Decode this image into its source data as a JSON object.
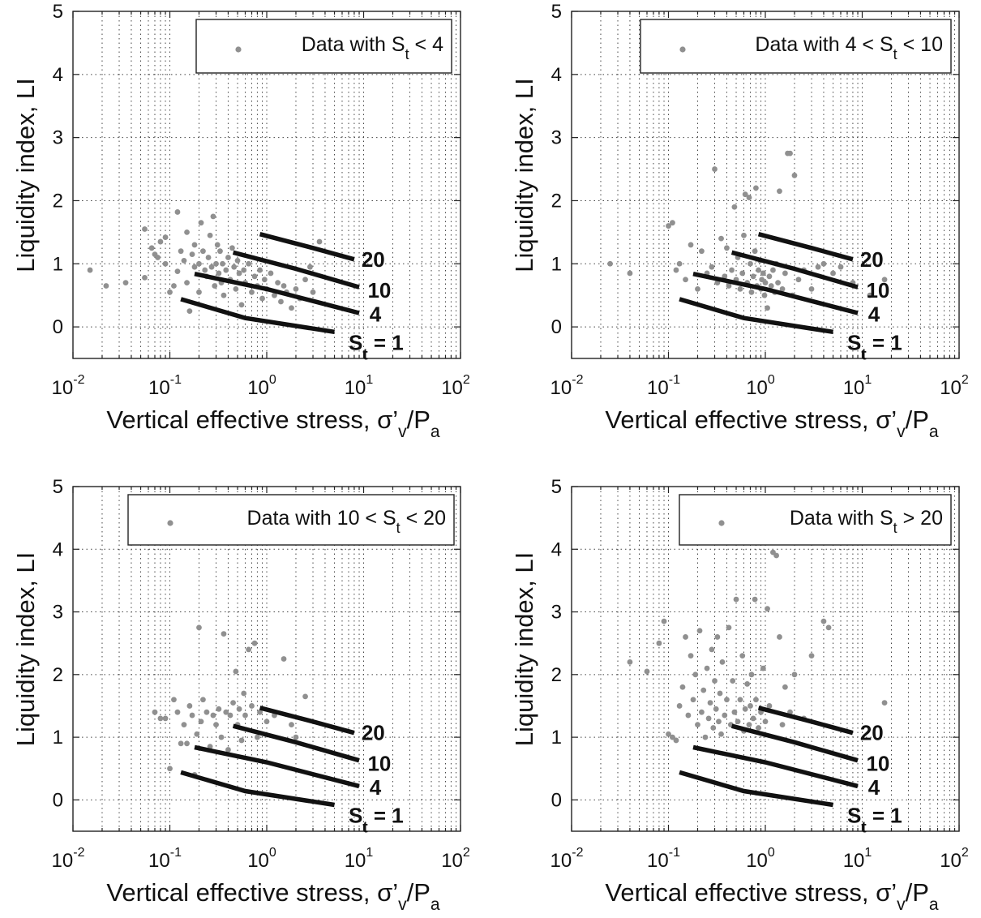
{
  "chart_data": [
    {
      "type": "scatter",
      "panel": "top-left",
      "legend": {
        "prefix": "Data with ",
        "var": "S",
        "sub": "t",
        "suffix": " < 4"
      },
      "xlabel": {
        "main": "Vertical effective stress, σ’",
        "sub1": "v",
        "mid": "/P",
        "sub2": "a"
      },
      "ylabel": "Liquidity index, LI",
      "xscale": "log",
      "xlim": [
        0.01,
        100
      ],
      "ylim": [
        -0.5,
        5
      ],
      "xticks": [
        {
          "base": "10",
          "exp": "-2"
        },
        {
          "base": "10",
          "exp": "-1"
        },
        {
          "base": "10",
          "exp": "0"
        },
        {
          "base": "10",
          "exp": "1"
        },
        {
          "base": "10",
          "exp": "2"
        }
      ],
      "yticks": [
        "0",
        "1",
        "2",
        "3",
        "4",
        "5"
      ],
      "points": [
        [
          0.015,
          0.9
        ],
        [
          0.022,
          0.65
        ],
        [
          0.035,
          0.7
        ],
        [
          0.055,
          1.55
        ],
        [
          0.055,
          0.78
        ],
        [
          0.065,
          1.25
        ],
        [
          0.07,
          1.15
        ],
        [
          0.075,
          1.1
        ],
        [
          0.08,
          1.35
        ],
        [
          0.09,
          1.42
        ],
        [
          0.09,
          1.0
        ],
        [
          0.1,
          0.55
        ],
        [
          0.11,
          0.65
        ],
        [
          0.12,
          0.88
        ],
        [
          0.12,
          1.82
        ],
        [
          0.13,
          1.2
        ],
        [
          0.14,
          1.05
        ],
        [
          0.15,
          0.7
        ],
        [
          0.15,
          1.5
        ],
        [
          0.16,
          0.25
        ],
        [
          0.17,
          1.15
        ],
        [
          0.18,
          0.95
        ],
        [
          0.18,
          1.3
        ],
        [
          0.2,
          1.0
        ],
        [
          0.2,
          0.55
        ],
        [
          0.21,
          1.65
        ],
        [
          0.22,
          1.2
        ],
        [
          0.23,
          0.9
        ],
        [
          0.24,
          0.8
        ],
        [
          0.25,
          1.1
        ],
        [
          0.26,
          1.45
        ],
        [
          0.27,
          0.95
        ],
        [
          0.28,
          1.75
        ],
        [
          0.29,
          0.65
        ],
        [
          0.3,
          1.0
        ],
        [
          0.31,
          1.3
        ],
        [
          0.32,
          0.85
        ],
        [
          0.33,
          1.2
        ],
        [
          0.34,
          0.7
        ],
        [
          0.35,
          1.0
        ],
        [
          0.36,
          0.5
        ],
        [
          0.38,
          0.9
        ],
        [
          0.4,
          1.1
        ],
        [
          0.42,
          0.75
        ],
        [
          0.44,
          1.25
        ],
        [
          0.46,
          0.95
        ],
        [
          0.48,
          0.6
        ],
        [
          0.5,
          1.05
        ],
        [
          0.52,
          0.85
        ],
        [
          0.55,
          0.35
        ],
        [
          0.58,
          0.9
        ],
        [
          0.6,
          0.7
        ],
        [
          0.65,
          1.0
        ],
        [
          0.7,
          0.55
        ],
        [
          0.75,
          0.8
        ],
        [
          0.8,
          0.65
        ],
        [
          0.85,
          0.9
        ],
        [
          0.9,
          0.45
        ],
        [
          0.95,
          0.75
        ],
        [
          1.0,
          0.6
        ],
        [
          1.1,
          0.85
        ],
        [
          1.2,
          0.5
        ],
        [
          1.3,
          0.7
        ],
        [
          1.4,
          0.4
        ],
        [
          1.5,
          0.65
        ],
        [
          1.6,
          0.55
        ],
        [
          1.8,
          0.3
        ],
        [
          2.0,
          0.6
        ],
        [
          2.2,
          0.45
        ],
        [
          2.5,
          0.75
        ],
        [
          2.8,
          0.95
        ],
        [
          3.0,
          0.55
        ],
        [
          3.5,
          1.35
        ]
      ]
    },
    {
      "type": "scatter",
      "panel": "top-right",
      "legend": {
        "prefix": "Data with 4 < ",
        "var": "S",
        "sub": "t",
        "suffix": " < 10"
      },
      "xlabel": {
        "main": "Vertical effective stress, σ’",
        "sub1": "v",
        "mid": "/P",
        "sub2": "a"
      },
      "ylabel": "Liquidity index, LI",
      "xscale": "log",
      "xlim": [
        0.01,
        100
      ],
      "ylim": [
        -0.5,
        5
      ],
      "xticks": [
        {
          "base": "10",
          "exp": "-2"
        },
        {
          "base": "10",
          "exp": "-1"
        },
        {
          "base": "10",
          "exp": "0"
        },
        {
          "base": "10",
          "exp": "1"
        },
        {
          "base": "10",
          "exp": "2"
        }
      ],
      "yticks": [
        "0",
        "1",
        "2",
        "3",
        "4",
        "5"
      ],
      "points": [
        [
          0.025,
          1.0
        ],
        [
          0.04,
          0.85
        ],
        [
          0.1,
          1.6
        ],
        [
          0.11,
          1.65
        ],
        [
          0.12,
          0.9
        ],
        [
          0.13,
          1.0
        ],
        [
          0.15,
          0.75
        ],
        [
          0.17,
          1.3
        ],
        [
          0.2,
          0.6
        ],
        [
          0.22,
          1.2
        ],
        [
          0.25,
          0.85
        ],
        [
          0.28,
          0.95
        ],
        [
          0.3,
          2.5
        ],
        [
          0.32,
          0.7
        ],
        [
          0.35,
          1.4
        ],
        [
          0.38,
          0.8
        ],
        [
          0.4,
          1.25
        ],
        [
          0.42,
          0.65
        ],
        [
          0.45,
          0.9
        ],
        [
          0.48,
          1.9
        ],
        [
          0.5,
          0.75
        ],
        [
          0.52,
          1.1
        ],
        [
          0.55,
          0.6
        ],
        [
          0.58,
          0.85
        ],
        [
          0.6,
          1.45
        ],
        [
          0.62,
          2.1
        ],
        [
          0.65,
          0.7
        ],
        [
          0.68,
          2.05
        ],
        [
          0.7,
          1.0
        ],
        [
          0.72,
          0.55
        ],
        [
          0.75,
          0.8
        ],
        [
          0.78,
          1.2
        ],
        [
          0.8,
          2.2
        ],
        [
          0.82,
          0.65
        ],
        [
          0.85,
          0.9
        ],
        [
          0.88,
          1.05
        ],
        [
          0.9,
          0.6
        ],
        [
          0.92,
          0.75
        ],
        [
          0.95,
          0.85
        ],
        [
          0.98,
          0.5
        ],
        [
          1.0,
          0.7
        ],
        [
          1.05,
          0.3
        ],
        [
          1.1,
          0.8
        ],
        [
          1.15,
          0.65
        ],
        [
          1.2,
          0.9
        ],
        [
          1.25,
          0.55
        ],
        [
          1.3,
          1.0
        ],
        [
          1.35,
          0.7
        ],
        [
          1.4,
          2.15
        ],
        [
          1.5,
          0.6
        ],
        [
          1.6,
          0.85
        ],
        [
          1.7,
          2.75
        ],
        [
          1.8,
          2.75
        ],
        [
          1.9,
          0.5
        ],
        [
          2.0,
          2.4
        ],
        [
          2.2,
          0.75
        ],
        [
          2.5,
          0.9
        ],
        [
          3.0,
          0.6
        ],
        [
          3.5,
          0.95
        ],
        [
          4.0,
          1.0
        ],
        [
          5.0,
          0.85
        ],
        [
          6.0,
          0.95
        ],
        [
          8.0,
          0.7
        ],
        [
          12.0,
          0.5
        ],
        [
          17.0,
          0.75
        ]
      ]
    },
    {
      "type": "scatter",
      "panel": "bottom-left",
      "legend": {
        "prefix": "Data with 10 < ",
        "var": "S",
        "sub": "t",
        "suffix": " < 20"
      },
      "xlabel": {
        "main": "Vertical effective stress, σ’",
        "sub1": "v",
        "mid": "/P",
        "sub2": "a"
      },
      "ylabel": "Liquidity index, LI",
      "xscale": "log",
      "xlim": [
        0.01,
        100
      ],
      "ylim": [
        -0.5,
        5
      ],
      "xticks": [
        {
          "base": "10",
          "exp": "-2"
        },
        {
          "base": "10",
          "exp": "-1"
        },
        {
          "base": "10",
          "exp": "0"
        },
        {
          "base": "10",
          "exp": "1"
        },
        {
          "base": "10",
          "exp": "2"
        }
      ],
      "yticks": [
        "0",
        "1",
        "2",
        "3",
        "4",
        "5"
      ],
      "points": [
        [
          0.07,
          1.4
        ],
        [
          0.08,
          1.3
        ],
        [
          0.09,
          1.3
        ],
        [
          0.1,
          0.5
        ],
        [
          0.11,
          1.6
        ],
        [
          0.12,
          1.4
        ],
        [
          0.13,
          0.9
        ],
        [
          0.14,
          1.2
        ],
        [
          0.15,
          0.9
        ],
        [
          0.16,
          1.5
        ],
        [
          0.17,
          1.35
        ],
        [
          0.18,
          0.4
        ],
        [
          0.19,
          1.05
        ],
        [
          0.2,
          2.75
        ],
        [
          0.21,
          1.25
        ],
        [
          0.22,
          1.6
        ],
        [
          0.24,
          1.4
        ],
        [
          0.26,
          0.85
        ],
        [
          0.28,
          1.35
        ],
        [
          0.3,
          1.2
        ],
        [
          0.32,
          1.45
        ],
        [
          0.34,
          1.0
        ],
        [
          0.36,
          2.65
        ],
        [
          0.38,
          1.4
        ],
        [
          0.4,
          0.8
        ],
        [
          0.42,
          1.35
        ],
        [
          0.45,
          1.55
        ],
        [
          0.48,
          2.05
        ],
        [
          0.5,
          1.2
        ],
        [
          0.52,
          1.45
        ],
        [
          0.55,
          0.95
        ],
        [
          0.58,
          1.7
        ],
        [
          0.6,
          1.35
        ],
        [
          0.65,
          2.4
        ],
        [
          0.7,
          1.5
        ],
        [
          0.75,
          2.5
        ],
        [
          0.8,
          1.0
        ],
        [
          0.85,
          1.4
        ],
        [
          1.0,
          1.25
        ],
        [
          1.2,
          1.35
        ],
        [
          1.5,
          2.25
        ],
        [
          1.8,
          1.2
        ],
        [
          2.0,
          1.0
        ],
        [
          2.5,
          1.65
        ]
      ]
    },
    {
      "type": "scatter",
      "panel": "bottom-right",
      "legend": {
        "prefix": "Data with ",
        "var": "S",
        "sub": "t",
        "suffix": " > 20"
      },
      "xlabel": {
        "main": "Vertical effective stress, σ’",
        "sub1": "v",
        "mid": "/P",
        "sub2": "a"
      },
      "ylabel": "Liquidity index, LI",
      "xscale": "log",
      "xlim": [
        0.01,
        100
      ],
      "ylim": [
        -0.5,
        5
      ],
      "xticks": [
        {
          "base": "10",
          "exp": "-2"
        },
        {
          "base": "10",
          "exp": "-1"
        },
        {
          "base": "10",
          "exp": "0"
        },
        {
          "base": "10",
          "exp": "1"
        },
        {
          "base": "10",
          "exp": "2"
        }
      ],
      "yticks": [
        "0",
        "1",
        "2",
        "3",
        "4",
        "5"
      ],
      "points": [
        [
          0.04,
          2.2
        ],
        [
          0.06,
          2.05
        ],
        [
          0.08,
          2.5
        ],
        [
          0.09,
          2.85
        ],
        [
          0.1,
          1.05
        ],
        [
          0.11,
          1.0
        ],
        [
          0.12,
          0.95
        ],
        [
          0.13,
          1.5
        ],
        [
          0.14,
          1.8
        ],
        [
          0.15,
          2.6
        ],
        [
          0.16,
          1.35
        ],
        [
          0.17,
          2.3
        ],
        [
          0.18,
          1.6
        ],
        [
          0.19,
          2.0
        ],
        [
          0.2,
          1.2
        ],
        [
          0.21,
          2.7
        ],
        [
          0.22,
          1.4
        ],
        [
          0.23,
          1.75
        ],
        [
          0.24,
          1.0
        ],
        [
          0.25,
          2.1
        ],
        [
          0.26,
          1.3
        ],
        [
          0.27,
          1.55
        ],
        [
          0.28,
          2.4
        ],
        [
          0.29,
          1.15
        ],
        [
          0.3,
          1.9
        ],
        [
          0.31,
          1.45
        ],
        [
          0.32,
          2.6
        ],
        [
          0.33,
          1.25
        ],
        [
          0.34,
          1.7
        ],
        [
          0.35,
          1.05
        ],
        [
          0.36,
          2.2
        ],
        [
          0.38,
          1.35
        ],
        [
          0.4,
          1.6
        ],
        [
          0.42,
          2.75
        ],
        [
          0.44,
          1.2
        ],
        [
          0.46,
          1.9
        ],
        [
          0.48,
          1.4
        ],
        [
          0.5,
          3.2
        ],
        [
          0.52,
          1.25
        ],
        [
          0.55,
          1.6
        ],
        [
          0.58,
          2.3
        ],
        [
          0.6,
          1.1
        ],
        [
          0.62,
          1.45
        ],
        [
          0.65,
          1.85
        ],
        [
          0.68,
          1.2
        ],
        [
          0.7,
          1.5
        ],
        [
          0.72,
          2.0
        ],
        [
          0.75,
          1.3
        ],
        [
          0.78,
          3.2
        ],
        [
          0.8,
          1.6
        ],
        [
          0.85,
          1.15
        ],
        [
          0.9,
          1.4
        ],
        [
          0.95,
          2.1
        ],
        [
          1.0,
          1.25
        ],
        [
          1.05,
          3.05
        ],
        [
          1.1,
          1.5
        ],
        [
          1.2,
          3.95
        ],
        [
          1.3,
          3.9
        ],
        [
          1.4,
          2.6
        ],
        [
          1.5,
          1.2
        ],
        [
          1.6,
          1.8
        ],
        [
          1.8,
          1.4
        ],
        [
          2.0,
          2.0
        ],
        [
          2.5,
          1.3
        ],
        [
          3.0,
          2.3
        ],
        [
          4.0,
          2.85
        ],
        [
          4.5,
          2.75
        ],
        [
          17.0,
          1.55
        ]
      ]
    }
  ],
  "curves": [
    {
      "label_prefix": "",
      "label_sub": "",
      "label_value": "20",
      "points": [
        [
          0.85,
          1.47
        ],
        [
          3.0,
          1.25
        ],
        [
          8.0,
          1.07
        ]
      ],
      "label_at": [
        9.5,
        1.07
      ]
    },
    {
      "label_prefix": "",
      "label_sub": "",
      "label_value": "10",
      "points": [
        [
          0.45,
          1.18
        ],
        [
          2.0,
          0.92
        ],
        [
          9.0,
          0.63
        ]
      ],
      "label_at": [
        11.0,
        0.58
      ]
    },
    {
      "label_prefix": "",
      "label_sub": "",
      "label_value": "4",
      "points": [
        [
          0.18,
          0.84
        ],
        [
          1.0,
          0.6
        ],
        [
          9.0,
          0.22
        ]
      ],
      "label_at": [
        11.5,
        0.2
      ]
    },
    {
      "label_prefix": "S",
      "label_sub": "t",
      "label_value": " = 1",
      "points": [
        [
          0.13,
          0.44
        ],
        [
          0.6,
          0.14
        ],
        [
          5.0,
          -0.08
        ]
      ],
      "label_at": [
        7.0,
        -0.25
      ]
    }
  ],
  "colors": {
    "marker": "#909090",
    "curve": "#111111",
    "axis": "#222222",
    "grid": "#444444"
  }
}
